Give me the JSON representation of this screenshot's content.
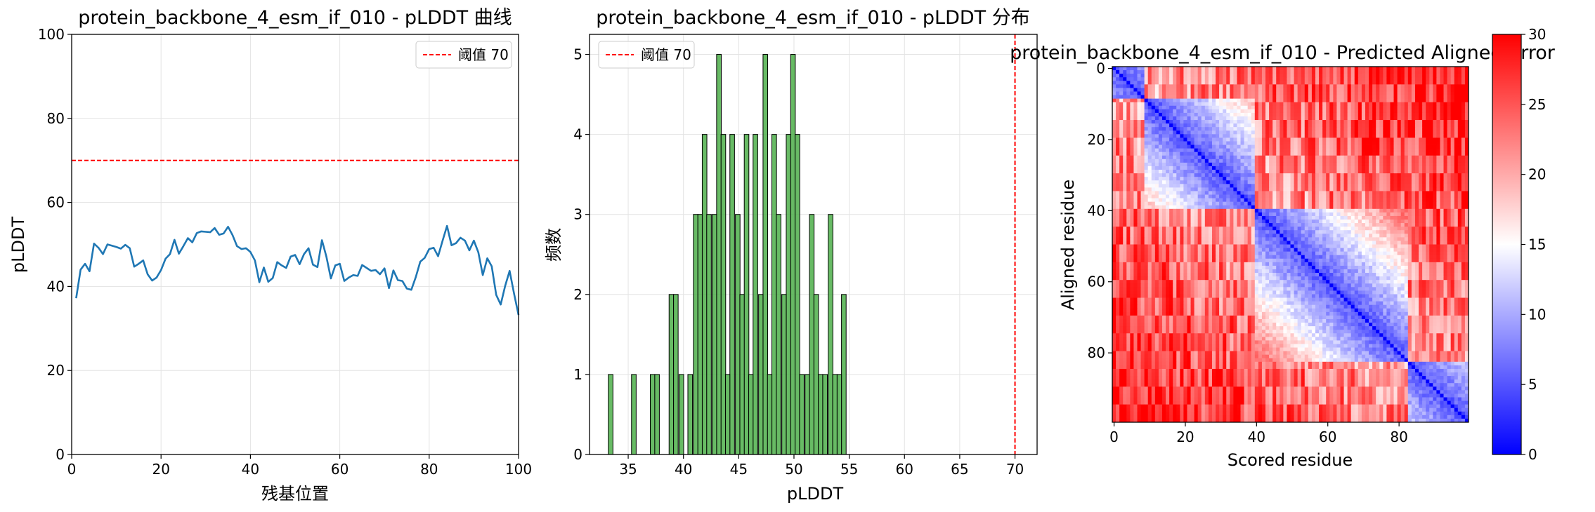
{
  "chart_data": [
    {
      "type": "line",
      "title": "protein_backbone_4_esm_if_010 - pLDDT 曲线",
      "xlabel": "残基位置",
      "ylabel": "pLDDT",
      "xlim": [
        0,
        100
      ],
      "ylim": [
        0,
        100
      ],
      "xticks": [
        0,
        20,
        40,
        60,
        80,
        100
      ],
      "yticks": [
        0,
        20,
        40,
        60,
        80,
        100
      ],
      "grid": true,
      "legend_position": "top-right",
      "series": [
        {
          "name": "阈值 70",
          "style": "dashed",
          "color": "#ff0000",
          "x": [
            0,
            100
          ],
          "y": [
            70,
            70
          ]
        },
        {
          "name": "",
          "color": "#1f77b4",
          "x": [
            1,
            2,
            3,
            4,
            5,
            6,
            7,
            8,
            9,
            10,
            11,
            12,
            13,
            14,
            15,
            16,
            17,
            18,
            19,
            20,
            21,
            22,
            23,
            24,
            25,
            26,
            27,
            28,
            29,
            30,
            31,
            32,
            33,
            34,
            35,
            36,
            37,
            38,
            39,
            40,
            41,
            42,
            43,
            44,
            45,
            46,
            47,
            48,
            49,
            50,
            51,
            52,
            53,
            54,
            55,
            56,
            57,
            58,
            59,
            60,
            61,
            62,
            63,
            64,
            65,
            66,
            67,
            68,
            69,
            70,
            71,
            72,
            73,
            74,
            75,
            76,
            77,
            78,
            79,
            80,
            81,
            82,
            83,
            84,
            85,
            86,
            87,
            88,
            89,
            90,
            91,
            92,
            93,
            94,
            95,
            96,
            97,
            98,
            99,
            100
          ],
          "y": [
            37.2,
            44.0,
            45.4,
            43.6,
            50.2,
            49.2,
            47.7,
            50.0,
            49.7,
            49.4,
            49.0,
            49.9,
            49.1,
            44.7,
            45.4,
            46.2,
            42.9,
            41.4,
            42.1,
            43.9,
            46.6,
            47.7,
            51.1,
            47.8,
            49.6,
            51.5,
            50.5,
            52.7,
            53.1,
            53.0,
            52.9,
            53.9,
            52.3,
            52.6,
            54.2,
            52.2,
            49.6,
            48.9,
            49.1,
            48.2,
            46.2,
            41.0,
            44.5,
            41.1,
            42.0,
            45.8,
            45.0,
            44.4,
            47.1,
            47.5,
            45.3,
            47.7,
            49.1,
            45.2,
            44.6,
            51.0,
            47.1,
            41.9,
            45.0,
            45.4,
            41.3,
            42.1,
            42.7,
            42.5,
            45.1,
            44.4,
            43.7,
            43.9,
            42.9,
            44.3,
            39.6,
            43.8,
            41.5,
            41.3,
            39.5,
            39.2,
            42.2,
            45.9,
            46.8,
            48.9,
            49.2,
            47.2,
            50.9,
            54.4,
            49.8,
            50.3,
            51.6,
            50.9,
            48.6,
            50.9,
            48.1,
            42.7,
            46.7,
            44.8,
            38.0,
            35.7,
            40.1,
            43.7,
            38.3,
            33.2
          ]
        }
      ]
    },
    {
      "type": "bar",
      "title": "protein_backbone_4_esm_if_010 - pLDDT 分布",
      "xlabel": "pLDDT",
      "ylabel": "频数",
      "xlim": [
        31.5,
        72
      ],
      "ylim": [
        0,
        5.25
      ],
      "xticks": [
        35,
        40,
        45,
        50,
        55,
        60,
        65,
        70
      ],
      "yticks": [
        0,
        1,
        2,
        3,
        4,
        5
      ],
      "grid": true,
      "legend_position": "top-left",
      "bar_color": "#4daf4a",
      "bin_width": 0.42,
      "bins_start": [
        33.2,
        35.3,
        37.0,
        37.4,
        38.7,
        39.1,
        39.6,
        40.4,
        40.9,
        41.3,
        41.7,
        42.1,
        42.6,
        43.0,
        43.4,
        43.8,
        44.2,
        44.7,
        45.1,
        45.5,
        45.9,
        46.3,
        46.8,
        47.2,
        47.6,
        48.0,
        48.4,
        48.9,
        49.3,
        49.7,
        50.1,
        50.5,
        51.0,
        51.4,
        51.8,
        52.2,
        52.6,
        53.1,
        53.5,
        53.9,
        54.3
      ],
      "values": [
        1,
        1,
        1,
        1,
        2,
        2,
        1,
        1,
        3,
        3,
        4,
        3,
        3,
        5,
        4,
        1,
        4,
        3,
        2,
        4,
        1,
        4,
        2,
        5,
        1,
        4,
        3,
        2,
        4,
        5,
        4,
        1,
        1,
        3,
        2,
        1,
        1,
        3,
        1,
        1,
        2
      ],
      "reference_line": {
        "label": "阈值 70",
        "x": 70,
        "color": "#ff0000",
        "style": "dashed"
      }
    },
    {
      "type": "heatmap",
      "title": "protein_backbone_4_esm_if_010 - Predicted Aligned Error",
      "xlabel": "Scored residue",
      "ylabel": "Aligned residue",
      "x_range": [
        0,
        99
      ],
      "y_range": [
        0,
        99
      ],
      "xticks": [
        0,
        20,
        40,
        60,
        80
      ],
      "yticks": [
        0,
        20,
        40,
        60,
        80
      ],
      "colormap": "bwr",
      "colorbar_range": [
        0,
        30
      ],
      "colorbar_ticks": [
        0,
        5,
        10,
        15,
        20,
        25,
        30
      ],
      "diagonal_value": 0,
      "domains": [
        [
          0,
          8
        ],
        [
          9,
          39
        ],
        [
          40,
          82
        ],
        [
          83,
          99
        ]
      ]
    }
  ]
}
